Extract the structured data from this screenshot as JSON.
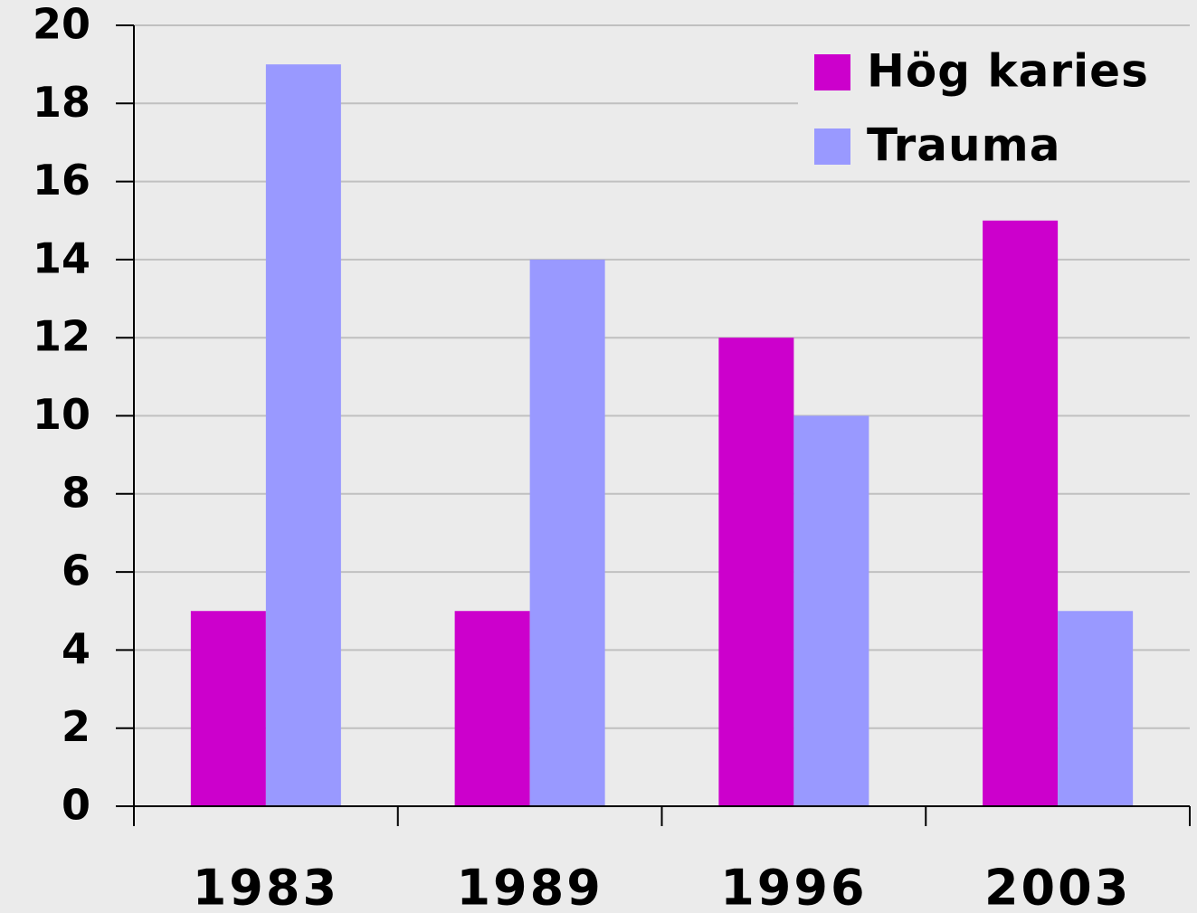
{
  "chart_data": {
    "type": "bar",
    "categories": [
      "1983",
      "1989",
      "1996",
      "2003"
    ],
    "series": [
      {
        "name": "Hög karies",
        "color": "#cc00cc",
        "values": [
          5,
          5,
          12,
          15
        ]
      },
      {
        "name": "Trauma",
        "color": "#9999ff",
        "values": [
          19,
          14,
          10,
          5
        ]
      }
    ],
    "ylim": [
      0,
      20
    ],
    "yticks": [
      0,
      2,
      4,
      6,
      8,
      10,
      12,
      14,
      16,
      18,
      20
    ],
    "grid": true,
    "legend": "top-right"
  }
}
